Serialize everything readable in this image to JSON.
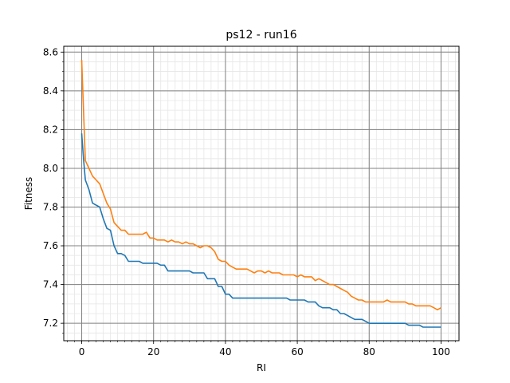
{
  "chart_data": {
    "type": "line",
    "title": "ps12 - run16",
    "xlabel": "RI",
    "ylabel": "Fitness",
    "xlim": [
      -5,
      105
    ],
    "ylim": [
      7.11,
      8.63
    ],
    "x_ticks": [
      0,
      20,
      40,
      60,
      80,
      100
    ],
    "y_ticks": [
      7.2,
      7.4,
      7.6,
      7.8,
      8.0,
      8.2,
      8.4,
      8.6
    ],
    "x_minor_step": 2,
    "y_minor_step": 0.05,
    "grid": "major and minor",
    "legend": "none",
    "series": [
      {
        "color": "#1f77b4",
        "x": [
          0,
          0.5,
          1,
          2,
          3,
          4,
          5,
          6,
          7,
          8,
          9,
          10,
          11,
          12,
          13,
          14,
          15,
          16,
          17,
          18,
          19,
          20,
          21,
          22,
          23,
          24,
          25,
          26,
          27,
          28,
          29,
          30,
          31,
          32,
          33,
          34,
          35,
          36,
          37,
          38,
          39,
          40,
          41,
          42,
          43,
          44,
          45,
          46,
          47,
          48,
          49,
          50,
          51,
          52,
          53,
          54,
          55,
          56,
          57,
          58,
          59,
          60,
          61,
          62,
          63,
          64,
          65,
          66,
          67,
          68,
          69,
          70,
          71,
          72,
          73,
          74,
          75,
          76,
          77,
          78,
          79,
          80,
          81,
          82,
          83,
          84,
          85,
          86,
          87,
          88,
          89,
          90,
          91,
          92,
          93,
          94,
          95,
          96,
          97,
          98,
          99,
          100
        ],
        "values": [
          8.18,
          8.05,
          7.94,
          7.89,
          7.82,
          7.81,
          7.8,
          7.74,
          7.69,
          7.68,
          7.6,
          7.56,
          7.56,
          7.55,
          7.52,
          7.52,
          7.52,
          7.52,
          7.51,
          7.51,
          7.51,
          7.51,
          7.51,
          7.5,
          7.5,
          7.47,
          7.47,
          7.47,
          7.47,
          7.47,
          7.47,
          7.47,
          7.46,
          7.46,
          7.46,
          7.46,
          7.43,
          7.43,
          7.43,
          7.39,
          7.39,
          7.35,
          7.35,
          7.33,
          7.33,
          7.33,
          7.33,
          7.33,
          7.33,
          7.33,
          7.33,
          7.33,
          7.33,
          7.33,
          7.33,
          7.33,
          7.33,
          7.33,
          7.33,
          7.32,
          7.32,
          7.32,
          7.32,
          7.32,
          7.31,
          7.31,
          7.31,
          7.29,
          7.28,
          7.28,
          7.28,
          7.27,
          7.27,
          7.25,
          7.25,
          7.24,
          7.23,
          7.22,
          7.22,
          7.22,
          7.21,
          7.2,
          7.2,
          7.2,
          7.2,
          7.2,
          7.2,
          7.2,
          7.2,
          7.2,
          7.2,
          7.2,
          7.19,
          7.19,
          7.19,
          7.19,
          7.18,
          7.18,
          7.18,
          7.18,
          7.18,
          7.18
        ]
      },
      {
        "color": "#ff7f0e",
        "x": [
          0,
          0.5,
          1,
          2,
          3,
          4,
          5,
          6,
          7,
          8,
          9,
          10,
          11,
          12,
          13,
          14,
          15,
          16,
          17,
          18,
          19,
          20,
          21,
          22,
          23,
          24,
          25,
          26,
          27,
          28,
          29,
          30,
          31,
          32,
          33,
          34,
          35,
          36,
          37,
          38,
          39,
          40,
          41,
          42,
          43,
          44,
          45,
          46,
          47,
          48,
          49,
          50,
          51,
          52,
          53,
          54,
          55,
          56,
          57,
          58,
          59,
          60,
          61,
          62,
          63,
          64,
          65,
          66,
          67,
          68,
          69,
          70,
          71,
          72,
          73,
          74,
          75,
          76,
          77,
          78,
          79,
          80,
          81,
          82,
          83,
          84,
          85,
          86,
          87,
          88,
          89,
          90,
          91,
          92,
          93,
          94,
          95,
          96,
          97,
          98,
          99,
          100
        ],
        "values": [
          8.56,
          8.3,
          8.04,
          8.0,
          7.96,
          7.94,
          7.92,
          7.87,
          7.82,
          7.79,
          7.72,
          7.7,
          7.68,
          7.68,
          7.66,
          7.66,
          7.66,
          7.66,
          7.66,
          7.67,
          7.64,
          7.64,
          7.63,
          7.63,
          7.63,
          7.62,
          7.63,
          7.62,
          7.62,
          7.61,
          7.62,
          7.61,
          7.61,
          7.6,
          7.59,
          7.6,
          7.6,
          7.59,
          7.57,
          7.53,
          7.52,
          7.52,
          7.5,
          7.49,
          7.48,
          7.48,
          7.48,
          7.48,
          7.47,
          7.46,
          7.47,
          7.47,
          7.46,
          7.47,
          7.46,
          7.46,
          7.46,
          7.45,
          7.45,
          7.45,
          7.45,
          7.44,
          7.45,
          7.44,
          7.44,
          7.44,
          7.42,
          7.43,
          7.42,
          7.41,
          7.4,
          7.4,
          7.39,
          7.38,
          7.37,
          7.36,
          7.34,
          7.33,
          7.32,
          7.32,
          7.31,
          7.31,
          7.31,
          7.31,
          7.31,
          7.31,
          7.32,
          7.31,
          7.31,
          7.31,
          7.31,
          7.31,
          7.3,
          7.3,
          7.29,
          7.29,
          7.29,
          7.29,
          7.29,
          7.28,
          7.27,
          7.28
        ]
      }
    ]
  }
}
